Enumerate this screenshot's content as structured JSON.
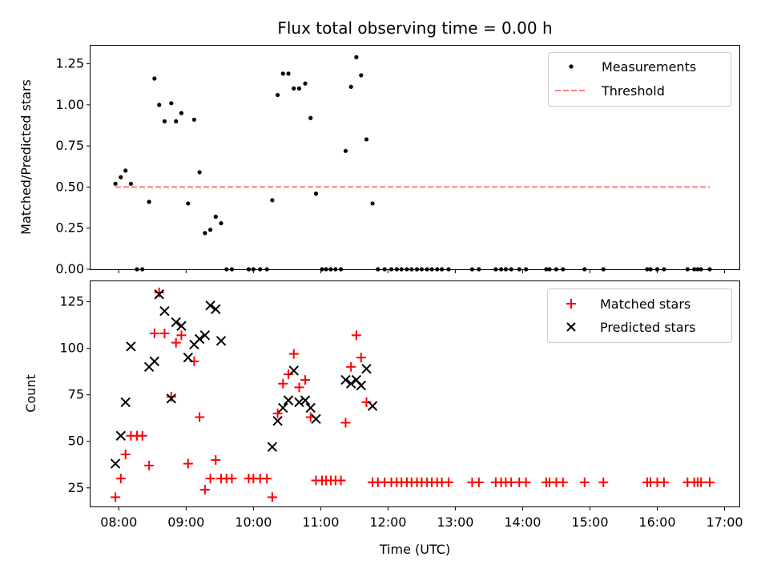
{
  "chart_data": [
    {
      "type": "scatter",
      "title": "Flux total observing time = 0.00 h",
      "xlabel": "",
      "ylabel": "Matched/Predicted stars",
      "xlim": [
        7.58,
        17.22
      ],
      "ylim": [
        0,
        1.36
      ],
      "yticks": [
        0,
        0.25,
        0.5,
        0.75,
        1.0,
        1.25
      ],
      "ytick_labels": [
        "0.00",
        "0.25",
        "0.50",
        "0.75",
        "1.00",
        "1.25",
        ""
      ],
      "legend": {
        "placement": "top-right",
        "entries": [
          "Measurements",
          "Threshold"
        ]
      },
      "series": [
        {
          "name": "Measurements",
          "marker": "dot",
          "color": "#000000",
          "x": [
            7.95,
            8.03,
            8.1,
            8.18,
            8.27,
            8.35,
            8.45,
            8.53,
            8.6,
            8.68,
            8.78,
            8.85,
            8.93,
            9.03,
            9.12,
            9.2,
            9.28,
            9.36,
            9.44,
            9.52,
            9.6,
            9.68,
            9.93,
            10.0,
            10.1,
            10.2,
            10.28,
            10.36,
            10.44,
            10.52,
            10.6,
            10.68,
            10.77,
            10.85,
            10.93,
            11.02,
            11.08,
            11.15,
            11.22,
            11.3,
            11.37,
            11.45,
            11.53,
            11.6,
            11.68,
            11.77,
            11.85,
            11.95,
            12.05,
            12.13,
            12.2,
            12.28,
            12.35,
            12.43,
            12.5,
            12.58,
            12.65,
            12.73,
            12.8,
            12.9,
            13.25,
            13.35,
            13.6,
            13.68,
            13.75,
            13.83,
            13.95,
            14.05,
            14.35,
            14.4,
            14.5,
            14.6,
            14.92,
            15.2,
            15.85,
            15.9,
            16.0,
            16.1,
            16.45,
            16.55,
            16.6,
            16.65,
            16.78
          ],
          "y": [
            0.52,
            0.56,
            0.6,
            0.52,
            0.0,
            0.0,
            0.41,
            1.16,
            1.0,
            0.9,
            1.01,
            0.9,
            0.95,
            0.4,
            0.91,
            0.59,
            0.22,
            0.24,
            0.32,
            0.28,
            0.0,
            0.0,
            0.0,
            0.0,
            0.0,
            0.0,
            0.42,
            1.06,
            1.19,
            1.19,
            1.1,
            1.1,
            1.13,
            0.92,
            0.46,
            0.0,
            0.0,
            0.0,
            0.0,
            0.0,
            0.72,
            1.11,
            1.29,
            1.18,
            0.79,
            0.4,
            0.0,
            0.0,
            0.0,
            0.0,
            0.0,
            0.0,
            0.0,
            0.0,
            0.0,
            0.0,
            0.0,
            0.0,
            0.0,
            0.0,
            0.0,
            0.0,
            0.0,
            0.0,
            0.0,
            0.0,
            0.0,
            0.0,
            0.0,
            0.0,
            0.0,
            0.0,
            0.0,
            0.0,
            0.0,
            0.0,
            0.0,
            0.0,
            0.0,
            0.0,
            0.0,
            0.0,
            0.0
          ]
        },
        {
          "name": "Threshold",
          "marker": "dashed-line",
          "color": "#ff7f7f",
          "x": [
            7.95,
            16.78
          ],
          "y": [
            0.5,
            0.5
          ]
        }
      ]
    },
    {
      "type": "scatter",
      "title": "",
      "xlabel": "Time (UTC)",
      "ylabel": "Count",
      "xlim": [
        7.58,
        17.22
      ],
      "ylim": [
        15,
        136
      ],
      "yticks": [
        25,
        50,
        75,
        100,
        125
      ],
      "ytick_labels": [
        "25",
        "50",
        "75",
        "100",
        "125"
      ],
      "xticks": [
        8,
        9,
        10,
        11,
        12,
        13,
        14,
        15,
        16,
        17
      ],
      "xtick_labels": [
        "08:00",
        "09:00",
        "10:00",
        "11:00",
        "12:00",
        "13:00",
        "14:00",
        "15:00",
        "16:00",
        "17:00"
      ],
      "legend": {
        "placement": "top-right",
        "entries": [
          "Matched stars",
          "Predicted stars"
        ]
      },
      "series": [
        {
          "name": "Matched stars",
          "marker": "plus",
          "color": "#ff0000",
          "x": [
            7.95,
            8.03,
            8.1,
            8.18,
            8.27,
            8.35,
            8.45,
            8.53,
            8.6,
            8.68,
            8.78,
            8.85,
            8.93,
            9.03,
            9.12,
            9.2,
            9.28,
            9.36,
            9.44,
            9.52,
            9.6,
            9.68,
            9.93,
            10.0,
            10.1,
            10.2,
            10.28,
            10.36,
            10.44,
            10.52,
            10.6,
            10.68,
            10.77,
            10.85,
            10.93,
            11.02,
            11.08,
            11.15,
            11.22,
            11.3,
            11.37,
            11.45,
            11.53,
            11.6,
            11.68,
            11.77,
            11.85,
            11.95,
            12.05,
            12.13,
            12.2,
            12.28,
            12.35,
            12.43,
            12.5,
            12.58,
            12.65,
            12.73,
            12.8,
            12.9,
            13.25,
            13.35,
            13.6,
            13.68,
            13.75,
            13.83,
            13.95,
            14.05,
            14.35,
            14.4,
            14.5,
            14.6,
            14.92,
            15.2,
            15.85,
            15.9,
            16.0,
            16.1,
            16.45,
            16.55,
            16.6,
            16.65,
            16.78
          ],
          "y": [
            20,
            30,
            43,
            53,
            53,
            53,
            37,
            108,
            130,
            108,
            74,
            103,
            107,
            38,
            93,
            63,
            24,
            30,
            40,
            30,
            30,
            30,
            30,
            30,
            30,
            30,
            20,
            65,
            81,
            86,
            97,
            79,
            83,
            63,
            29,
            29,
            29,
            29,
            29,
            29,
            60,
            90,
            107,
            95,
            71,
            28,
            28,
            28,
            28,
            28,
            28,
            28,
            28,
            28,
            28,
            28,
            28,
            28,
            28,
            28,
            28,
            28,
            28,
            28,
            28,
            28,
            28,
            28,
            28,
            28,
            28,
            28,
            28,
            28,
            28,
            28,
            28,
            28,
            28,
            28,
            28,
            28,
            28
          ]
        },
        {
          "name": "Predicted stars",
          "marker": "x",
          "color": "#000000",
          "x": [
            7.95,
            8.03,
            8.1,
            8.18,
            8.45,
            8.53,
            8.6,
            8.68,
            8.78,
            8.85,
            8.93,
            9.03,
            9.12,
            9.2,
            9.28,
            9.36,
            9.44,
            9.52,
            10.28,
            10.36,
            10.44,
            10.52,
            10.6,
            10.68,
            10.77,
            10.85,
            10.93,
            11.37,
            11.45,
            11.53,
            11.6,
            11.68,
            11.77
          ],
          "y": [
            38,
            53,
            71,
            101,
            90,
            93,
            129,
            120,
            73,
            114,
            112,
            95,
            102,
            105,
            107,
            123,
            121,
            104,
            47,
            61,
            68,
            72,
            88,
            71,
            72,
            68,
            62,
            83,
            81,
            83,
            80,
            89,
            69
          ]
        }
      ]
    }
  ]
}
